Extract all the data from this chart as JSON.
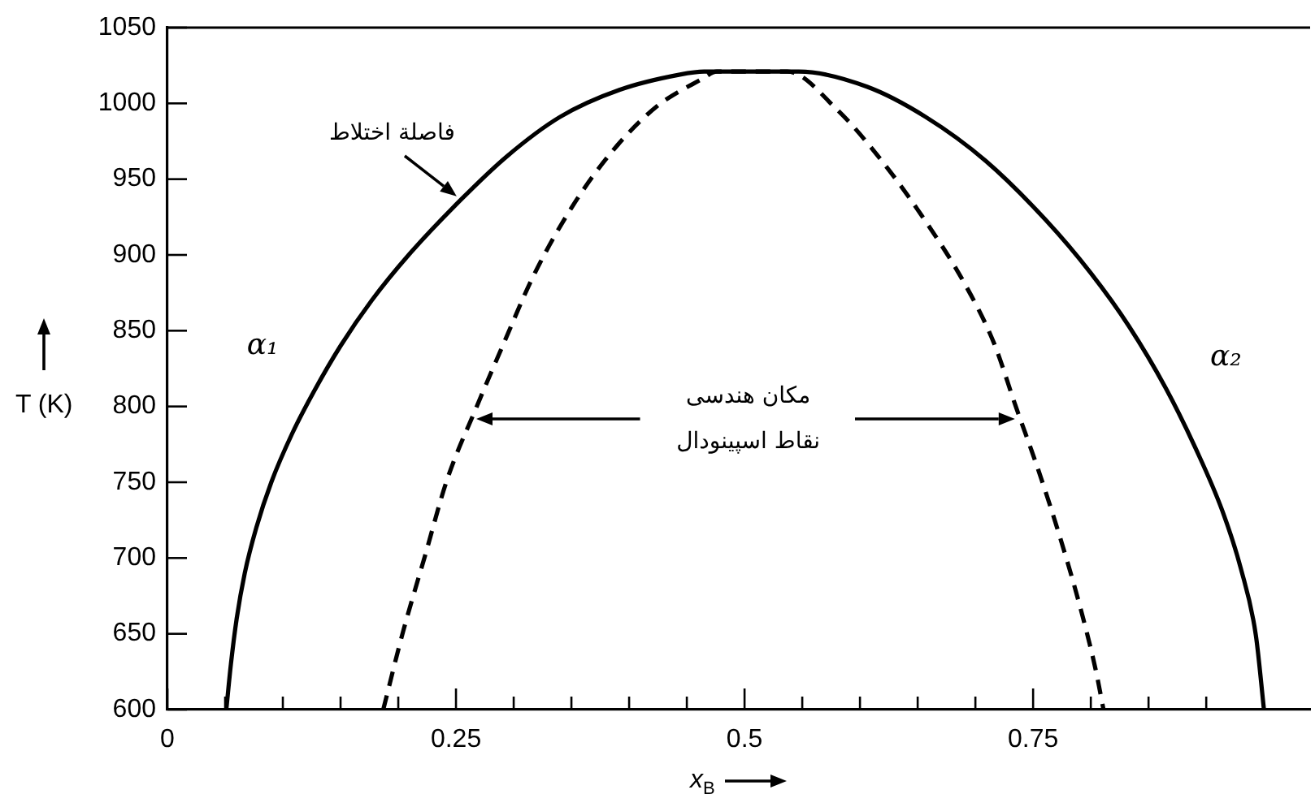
{
  "chart_data": {
    "type": "line",
    "xlabel": "x$_{B}$",
    "ylabel": "T (K)",
    "xlim": [
      0,
      0.99
    ],
    "ylim": [
      600,
      1050
    ],
    "xticks": [
      0,
      {
        "value": 0.05,
        "label": null
      },
      {
        "value": 0.1,
        "label": null
      },
      {
        "value": 0.15,
        "label": null
      },
      {
        "value": 0.2,
        "label": null
      },
      0.25,
      {
        "value": 0.3,
        "label": null
      },
      {
        "value": 0.35,
        "label": null
      },
      {
        "value": 0.4,
        "label": null
      },
      {
        "value": 0.45,
        "label": null
      },
      0.5,
      {
        "value": 0.55,
        "label": null
      },
      {
        "value": 0.6,
        "label": null
      },
      {
        "value": 0.65,
        "label": null
      },
      {
        "value": 0.7,
        "label": null
      },
      0.75,
      {
        "value": 0.8,
        "label": null
      },
      {
        "value": 0.85,
        "label": null
      },
      {
        "value": 0.9,
        "label": null
      }
    ],
    "yticks": [
      600,
      650,
      700,
      750,
      800,
      850,
      900,
      950,
      1000,
      1050
    ],
    "series": [
      {
        "color": "#000000",
        "line_style": "solid",
        "x": [
          0.051,
          0.055,
          0.06,
          0.067,
          0.077,
          0.09,
          0.108,
          0.127,
          0.15,
          0.177,
          0.209,
          0.255,
          0.294,
          0.34,
          0.392,
          0.444,
          0.465,
          0.547,
          0.606,
          0.657,
          0.709,
          0.761,
          0.8,
          0.833,
          0.865,
          0.891,
          0.914,
          0.93,
          0.943,
          0.95
        ],
        "values": [
          600,
          630,
          660,
          690,
          720,
          750,
          782,
          810,
          840,
          870,
          900,
          937,
          965,
          991,
          1009,
          1019,
          1021,
          1021,
          1011,
          991,
          962,
          923,
          888,
          853,
          812,
          772,
          731,
          693,
          649,
          600
        ]
      },
      {
        "color": "#000000",
        "line_style": "dashed",
        "x": [
          0.187,
          0.204,
          0.223,
          0.242,
          0.268,
          0.291,
          0.317,
          0.35,
          0.385,
          0.424,
          0.463,
          0.476,
          0.537,
          0.58,
          0.619,
          0.657,
          0.69,
          0.716,
          0.735,
          0.755,
          0.774,
          0.791,
          0.804,
          0.811
        ],
        "values": [
          600,
          651,
          701,
          751,
          800,
          841,
          886,
          931,
          968,
          998,
          1016,
          1021,
          1021,
          996,
          962,
          922,
          882,
          842,
          800,
          757,
          712,
          667,
          627,
          600
        ]
      }
    ],
    "annotations": [
      "فاصلة اختلاط",
      "مکان هندسی نقاط اسپینودال",
      "α₁",
      "α₂"
    ]
  }
}
